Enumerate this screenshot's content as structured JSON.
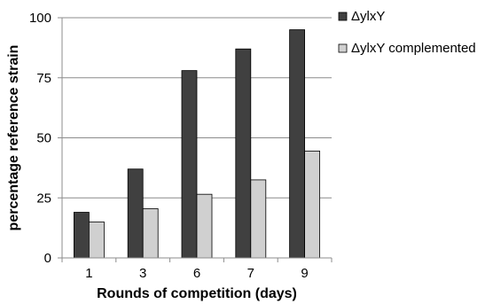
{
  "chart_data": {
    "type": "bar",
    "title": "",
    "xlabel": "Rounds of competition (days)",
    "ylabel": "percentage reference strain",
    "categories": [
      "1",
      "3",
      "6",
      "7",
      "9"
    ],
    "ylim": [
      0,
      100
    ],
    "yticks": [
      "0",
      "25",
      "50",
      "75",
      "100"
    ],
    "grid": true,
    "legend_position": "right",
    "series": [
      {
        "name": "ΔylxY",
        "values": [
          19,
          37,
          78,
          87,
          95
        ],
        "color": "#404040"
      },
      {
        "name": "ΔylxY complemented",
        "values": [
          15,
          20.5,
          26.5,
          32.5,
          44.5
        ],
        "color": "#d0d0d0"
      }
    ]
  }
}
